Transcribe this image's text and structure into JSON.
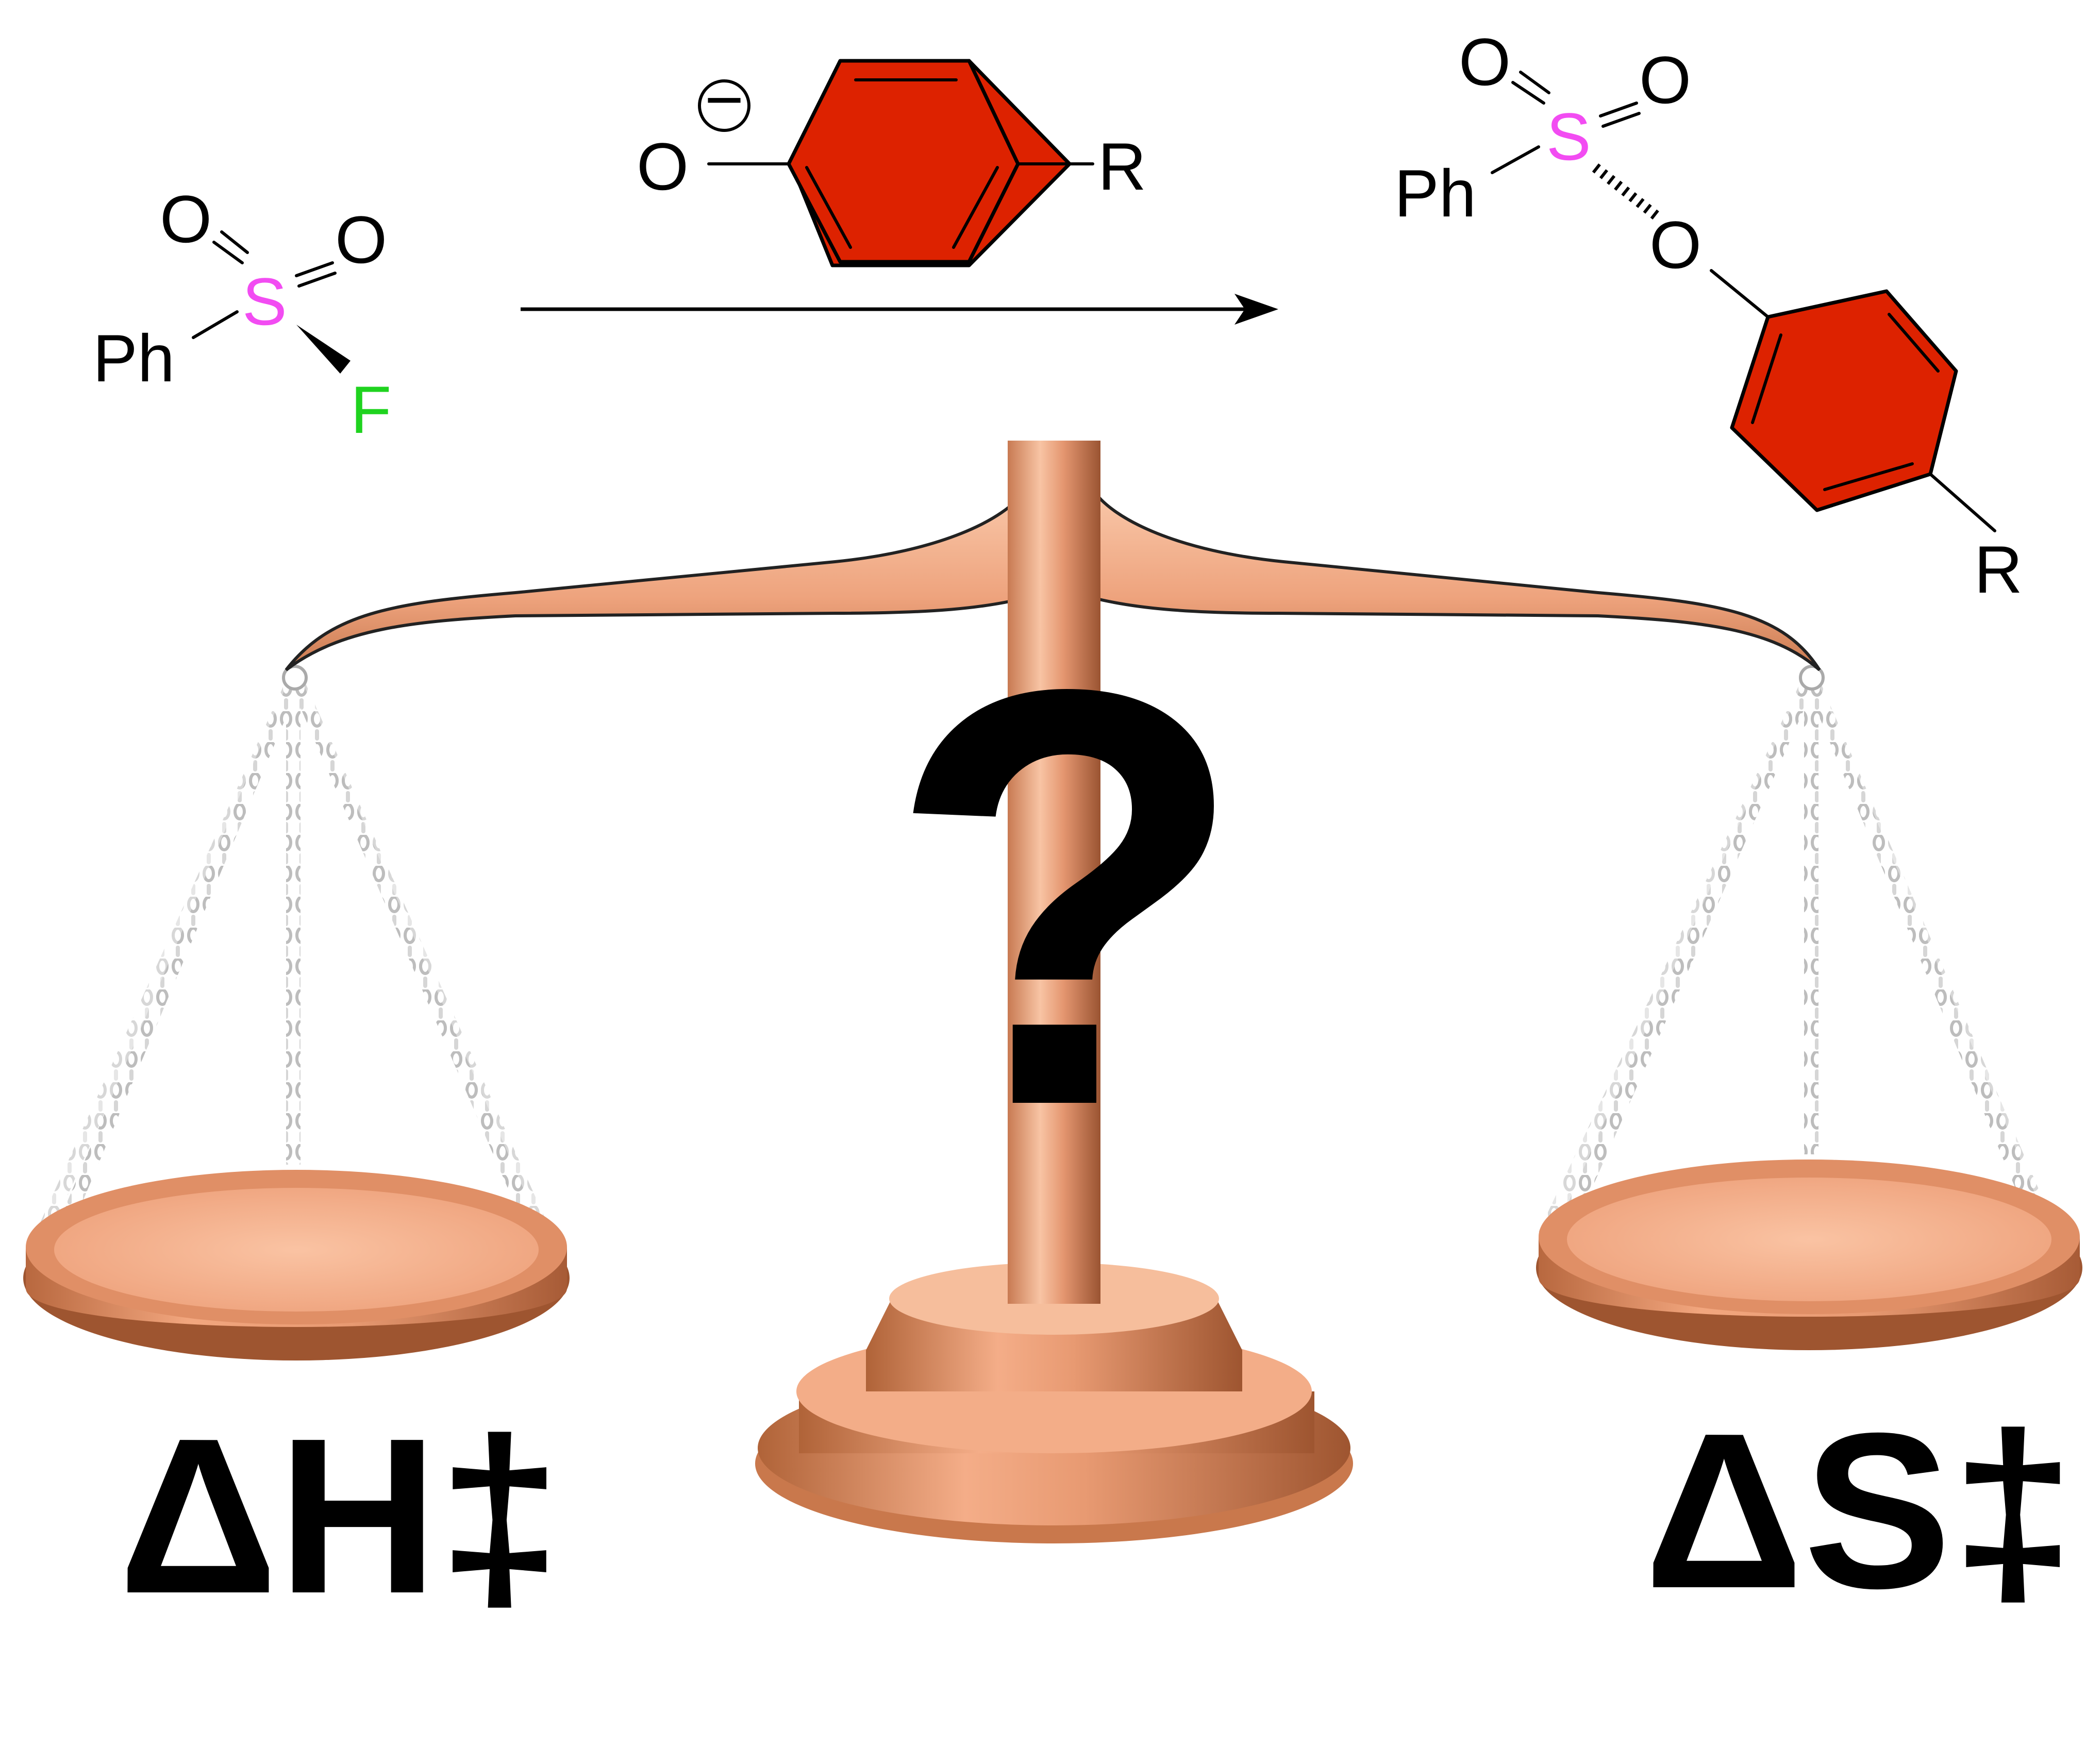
{
  "colors": {
    "background": "#ffffff",
    "ring_fill": "#dd2200",
    "sulfur": "#f24cf2",
    "fluorine": "#1fd31f",
    "copper_light": "#f6b390",
    "copper_mid": "#e89a72",
    "copper_dark": "#a85c3a",
    "chain": "#c8c8c8",
    "ink": "#000000"
  },
  "reactant": {
    "sulfur": "S",
    "oxygen_left": "O",
    "oxygen_right": "O",
    "phenyl": "Ph",
    "fluorine": "F"
  },
  "reagent": {
    "oxygen": "O",
    "charge": "−",
    "substituent": "R"
  },
  "product": {
    "sulfur": "S",
    "oxygen_left": "O",
    "oxygen_right": "O",
    "phenyl": "Ph",
    "bridge_oxygen": "O",
    "substituent": "R"
  },
  "balance": {
    "center_symbol": "?",
    "left_label": "ΔH‡",
    "right_label": "ΔS‡"
  }
}
